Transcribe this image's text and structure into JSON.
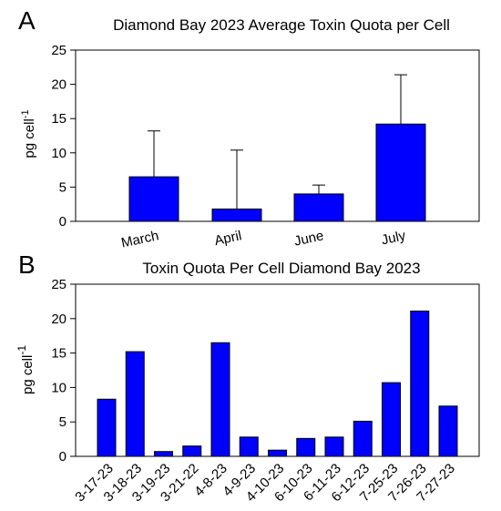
{
  "colors": {
    "bar": "#0000ff",
    "bar_stroke": "#000000",
    "axis": "#000000"
  },
  "chart_data": [
    {
      "type": "bar",
      "panel_letter": "A",
      "title": "Diamond Bay 2023 Average Toxin Quota per Cell",
      "ylabel_main": "pg cell",
      "ylabel_sup": "-1",
      "xlabel": "",
      "ylim": [
        0,
        25
      ],
      "yticks": [
        0,
        5,
        10,
        15,
        20,
        25
      ],
      "categories": [
        "March",
        "April",
        "June",
        "July"
      ],
      "values": [
        6.5,
        1.8,
        4.0,
        14.2
      ],
      "error_upper": [
        13.2,
        10.4,
        5.3,
        21.4
      ],
      "grid": false
    },
    {
      "type": "bar",
      "panel_letter": "B",
      "title": "Toxin Quota Per Cell Diamond Bay 2023",
      "ylabel_main": "pg cell",
      "ylabel_sup": "-1",
      "xlabel": "",
      "ylim": [
        0,
        25
      ],
      "yticks": [
        0,
        5,
        10,
        15,
        20,
        25
      ],
      "categories": [
        "3-17-23",
        "3-18-23",
        "3-19-23",
        "3-21-22",
        "4-8-23",
        "4-9-23",
        "4-10-23",
        "6-10-23",
        "6-11-23",
        "6-12-23",
        "7-25-23",
        "7-26-23",
        "7-27-23"
      ],
      "values": [
        8.3,
        15.2,
        0.7,
        1.5,
        16.5,
        2.8,
        0.9,
        2.6,
        2.8,
        5.1,
        10.7,
        21.1,
        7.3
      ],
      "grid": false
    }
  ]
}
